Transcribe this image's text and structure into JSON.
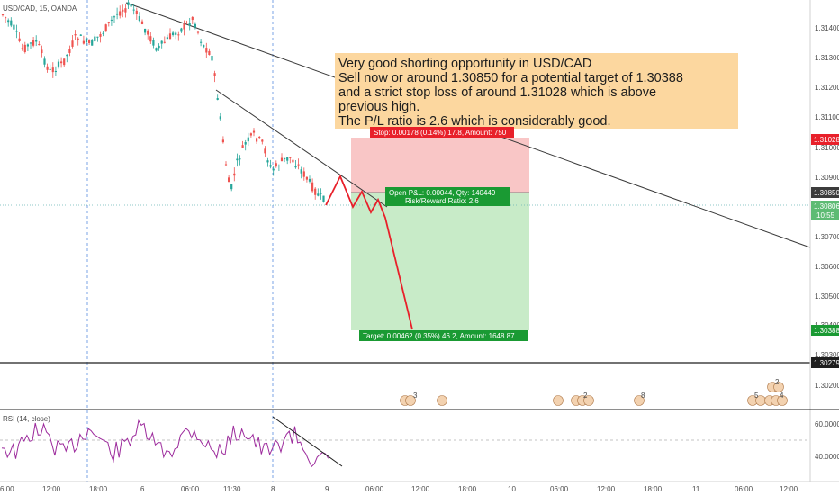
{
  "header": {
    "symbol_label": "USD/CAD, 15, OANDA"
  },
  "annotation": {
    "lines": [
      "Very good shorting opportunity in USD/CAD",
      "Sell now or around 1.30850 for a potential target of 1.30388",
      "and a strict stop loss of around 1.31028 which is above",
      "previous high.",
      "The P/L ratio is 2.6 which is considerably good."
    ]
  },
  "position": {
    "stop_label": "Stop: 0.00178 (0.14%) 17.8, Amount: 750",
    "open_label": "Open P&L: 0.00044, Qty: 140449",
    "rr_label": "Risk/Reward Ratio: 2.6",
    "target_label": "Target: 0.00462 (0.35%) 46.2, Amount: 1648.87"
  },
  "price_axis": {
    "labels": [
      "1.31400",
      "1.31300",
      "1.31200",
      "1.31100",
      "1.31000",
      "1.30900",
      "1.30700",
      "1.30600",
      "1.30500",
      "1.30400",
      "1.30300",
      "1.30200"
    ],
    "badges": [
      {
        "text": "1.31028",
        "color": "#e8202a"
      },
      {
        "text": "1.30850",
        "color": "#3c3c3c"
      },
      {
        "text": "1.30806",
        "color": "#5dbb73"
      },
      {
        "text": "10:55",
        "color": "#5dbb73"
      },
      {
        "text": "1.30388",
        "color": "#1a9a33"
      },
      {
        "text": "1.30279",
        "color": "#1e1e1e"
      }
    ]
  },
  "rsi": {
    "label": "RSI (14, close)",
    "axis_labels": [
      "60.0000",
      "40.0000"
    ]
  },
  "time_axis": {
    "labels": [
      "6:00",
      "12:00",
      "18:00",
      "6",
      "06:00",
      "11:30",
      "8",
      "9",
      "06:00",
      "12:00",
      "18:00",
      "10",
      "06:00",
      "12:00",
      "18:00",
      "11",
      "06:00",
      "12:00"
    ]
  },
  "events": {
    "labels": [
      "3",
      "2",
      "8",
      "5",
      "4",
      "2"
    ]
  },
  "colors": {
    "up": "#26a69a",
    "down": "#ef5350",
    "stop_zone": "#f9c6c6",
    "target_zone": "#c8ebc8",
    "annotation_bg": "#fcd79f",
    "projection": "#e8202a"
  },
  "chart_data": {
    "type": "candlestick",
    "title": "USD/CAD, 15, OANDA",
    "y_range": [
      1.3013,
      1.3145
    ],
    "entry": 1.3085,
    "stop": 1.31028,
    "target": 1.30388,
    "last_price": 1.30806,
    "support_level": 1.30279,
    "rsi_range": [
      20,
      80
    ],
    "rsi_level": 50
  }
}
